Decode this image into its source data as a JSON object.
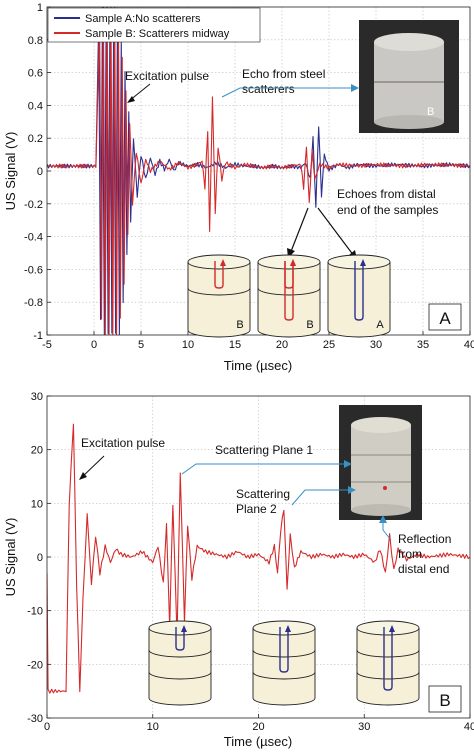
{
  "colors": {
    "blue": "#2b2f8f",
    "red": "#d42a2a",
    "axis": "#222222",
    "grid": "#bdbdbd",
    "cyl_fill": "#f5f0d7",
    "callout": "#3a8fc4"
  },
  "chart_data": [
    {
      "type": "line",
      "panel_label": "A",
      "xlabel": "Time (µsec)",
      "ylabel": "US Signal (V)",
      "xlim": [
        -5,
        40
      ],
      "ylim": [
        -1,
        1
      ],
      "xticks": [
        "-5",
        "0",
        "5",
        "10",
        "15",
        "20",
        "25",
        "30",
        "35",
        "40"
      ],
      "yticks": [
        "-1",
        "-0.8",
        "-0.6",
        "-0.4",
        "-0.2",
        "0",
        "0.2",
        "0.4",
        "0.6",
        "0.8",
        "1"
      ],
      "grid": true,
      "legend": "top-left",
      "series": [
        {
          "name": "Sample A:No scatterers",
          "color": "#2b2f8f",
          "baseline": 0.03,
          "points": [
            [
              -5,
              0.03
            ],
            [
              0.2,
              0.03
            ],
            [
              0.5,
              0.9
            ],
            [
              0.7,
              -0.9
            ],
            [
              0.9,
              1
            ],
            [
              1.1,
              -1
            ],
            [
              1.3,
              1
            ],
            [
              1.5,
              -1
            ],
            [
              1.7,
              1
            ],
            [
              1.9,
              -1
            ],
            [
              2.1,
              1
            ],
            [
              2.3,
              -1
            ],
            [
              2.5,
              1
            ],
            [
              2.7,
              -1
            ],
            [
              2.9,
              0.8
            ],
            [
              3.1,
              -0.8
            ],
            [
              3.3,
              0.6
            ],
            [
              3.5,
              -0.5
            ],
            [
              3.7,
              0.35
            ],
            [
              3.9,
              -0.3
            ],
            [
              4.2,
              0.2
            ],
            [
              4.6,
              -0.15
            ],
            [
              5,
              0.1
            ],
            [
              5.5,
              -0.05
            ],
            [
              6,
              0.08
            ],
            [
              6.5,
              -0.02
            ],
            [
              7,
              0.06
            ],
            [
              7.5,
              0.01
            ],
            [
              8,
              0.07
            ],
            [
              8.5,
              0
            ],
            [
              9,
              0.05
            ],
            [
              10,
              0.03
            ],
            [
              11,
              0.04
            ],
            [
              12,
              0.02
            ],
            [
              13,
              0.05
            ],
            [
              14,
              0.02
            ],
            [
              15,
              0.04
            ],
            [
              16,
              0.03
            ],
            [
              17,
              0.03
            ],
            [
              18,
              0.02
            ],
            [
              19,
              0.03
            ],
            [
              20,
              0.02
            ],
            [
              21,
              0.03
            ],
            [
              22,
              0.02
            ],
            [
              22.5,
              0.05
            ],
            [
              23,
              -0.05
            ],
            [
              23.3,
              0.2
            ],
            [
              23.6,
              -0.22
            ],
            [
              23.9,
              0.28
            ],
            [
              24.2,
              -0.15
            ],
            [
              24.5,
              0.1
            ],
            [
              25,
              0.01
            ],
            [
              26,
              0.04
            ],
            [
              27,
              0.02
            ],
            [
              28,
              0.04
            ],
            [
              30,
              0.03
            ],
            [
              32,
              0.04
            ],
            [
              35,
              0.03
            ],
            [
              38,
              0.04
            ],
            [
              40,
              0.03
            ]
          ]
        },
        {
          "name": "Sample B: Scatterers midway",
          "color": "#d42a2a",
          "baseline": 0.03,
          "points": [
            [
              -5,
              0.03
            ],
            [
              0.2,
              0.03
            ],
            [
              0.6,
              0.9
            ],
            [
              0.8,
              -0.9
            ],
            [
              1,
              1
            ],
            [
              1.2,
              -1
            ],
            [
              1.4,
              1
            ],
            [
              1.6,
              -1
            ],
            [
              1.8,
              1
            ],
            [
              2,
              -1
            ],
            [
              2.2,
              1
            ],
            [
              2.4,
              -1
            ],
            [
              2.6,
              0.9
            ],
            [
              2.8,
              -0.9
            ],
            [
              3,
              0.7
            ],
            [
              3.2,
              -0.7
            ],
            [
              3.4,
              0.5
            ],
            [
              3.6,
              -0.4
            ],
            [
              3.8,
              0.3
            ],
            [
              4.1,
              -0.2
            ],
            [
              4.5,
              0.12
            ],
            [
              5,
              -0.08
            ],
            [
              5.5,
              0.07
            ],
            [
              6,
              0
            ],
            [
              7,
              0.06
            ],
            [
              8,
              0.01
            ],
            [
              9,
              0.05
            ],
            [
              10,
              0.02
            ],
            [
              11,
              0.04
            ],
            [
              11.5,
              0.06
            ],
            [
              11.8,
              -0.1
            ],
            [
              12.1,
              0.25
            ],
            [
              12.3,
              -0.38
            ],
            [
              12.6,
              0.45
            ],
            [
              12.9,
              -0.25
            ],
            [
              13.2,
              0.15
            ],
            [
              13.6,
              -0.05
            ],
            [
              14,
              0.05
            ],
            [
              15,
              0.02
            ],
            [
              16,
              0.04
            ],
            [
              17,
              0.03
            ],
            [
              18,
              0.02
            ],
            [
              19,
              0.03
            ],
            [
              20,
              0.02
            ],
            [
              21,
              0.03
            ],
            [
              22,
              0.04
            ],
            [
              22.3,
              -0.1
            ],
            [
              22.6,
              0.15
            ],
            [
              22.9,
              -0.2
            ],
            [
              23.2,
              0.12
            ],
            [
              23.5,
              -0.05
            ],
            [
              24,
              0.04
            ],
            [
              25,
              0.02
            ],
            [
              26,
              0.04
            ],
            [
              28,
              0.03
            ],
            [
              30,
              0.04
            ],
            [
              33,
              0.03
            ],
            [
              36,
              0.04
            ],
            [
              40,
              0.03
            ]
          ]
        }
      ],
      "annotations": [
        {
          "text": "Excitation pulse"
        },
        {
          "text": "Echo from steel scatterers",
          "lines": [
            "Echo from steel",
            "scatterers"
          ]
        },
        {
          "text": "Echoes from distal end of the samples",
          "lines": [
            "Echoes from distal",
            "end of the samples"
          ]
        }
      ],
      "photo_label": "B",
      "diagram_labels": [
        "B",
        "B",
        "A"
      ]
    },
    {
      "type": "line",
      "panel_label": "B",
      "xlabel": "Time (µsec)",
      "ylabel": "US Signal (V)",
      "xlim": [
        0,
        40
      ],
      "ylim": [
        -30,
        30
      ],
      "xticks": [
        "0",
        "10",
        "20",
        "30",
        "40"
      ],
      "yticks": [
        "-30",
        "-20",
        "-10",
        "0",
        "10",
        "20",
        "30"
      ],
      "grid": true,
      "series": [
        {
          "color": "#d42a2a",
          "points": [
            [
              0,
              -3
            ],
            [
              0.1,
              -25
            ],
            [
              1.8,
              -25
            ],
            [
              2.1,
              10
            ],
            [
              2.5,
              25
            ],
            [
              2.8,
              -5
            ],
            [
              3.1,
              -25
            ],
            [
              3.4,
              -8
            ],
            [
              3.8,
              8
            ],
            [
              4.2,
              -5
            ],
            [
              4.6,
              4
            ],
            [
              5,
              -3
            ],
            [
              5.5,
              2
            ],
            [
              6,
              -1
            ],
            [
              6.5,
              1.5
            ],
            [
              7,
              0.5
            ],
            [
              8,
              0
            ],
            [
              9,
              1
            ],
            [
              10,
              -1
            ],
            [
              10.5,
              2
            ],
            [
              11,
              -5
            ],
            [
              11.3,
              6
            ],
            [
              11.6,
              -13
            ],
            [
              11.9,
              10
            ],
            [
              12.3,
              -15
            ],
            [
              12.6,
              16
            ],
            [
              13,
              -12
            ],
            [
              13.3,
              6
            ],
            [
              13.7,
              -4
            ],
            [
              14.2,
              2
            ],
            [
              15,
              1
            ],
            [
              16,
              0.5
            ],
            [
              17,
              0
            ],
            [
              18,
              1
            ],
            [
              19,
              0
            ],
            [
              20,
              0.5
            ],
            [
              21,
              -1
            ],
            [
              21.5,
              2
            ],
            [
              21.8,
              -3
            ],
            [
              22.1,
              5
            ],
            [
              22.4,
              9
            ],
            [
              22.7,
              -6
            ],
            [
              23,
              4
            ],
            [
              23.4,
              -2
            ],
            [
              24,
              1
            ],
            [
              25,
              0
            ],
            [
              26,
              0.5
            ],
            [
              27,
              0
            ],
            [
              28,
              0.5
            ],
            [
              29,
              0
            ],
            [
              30,
              0.5
            ],
            [
              31,
              -1
            ],
            [
              31.5,
              1.5
            ],
            [
              32,
              -3
            ],
            [
              32.4,
              4
            ],
            [
              32.8,
              -2.5
            ],
            [
              33.2,
              1.5
            ],
            [
              34,
              -0.5
            ],
            [
              35,
              0.5
            ],
            [
              36,
              0
            ],
            [
              38,
              0.5
            ],
            [
              40,
              0
            ]
          ]
        }
      ],
      "annotations": [
        {
          "text": "Excitation pulse"
        },
        {
          "text": "Scattering Plane 1"
        },
        {
          "text": "Scattering Plane 2",
          "lines": [
            "Scattering",
            "Plane 2"
          ]
        },
        {
          "text": "Reflection from distal end",
          "lines": [
            "Reflection",
            "from",
            "distal end"
          ]
        }
      ]
    }
  ]
}
